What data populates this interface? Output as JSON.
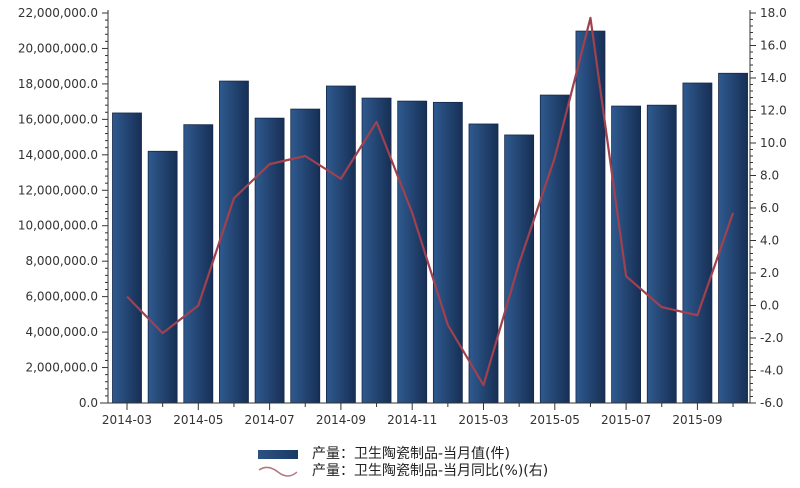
{
  "chart_data": {
    "type": "bar+line",
    "categories": [
      "2014-03",
      "2014-04",
      "2014-05",
      "2014-06",
      "2014-07",
      "2014-08",
      "2014-09",
      "2014-10",
      "2014-11",
      "2014-12",
      "2015-03",
      "2015-04",
      "2015-05",
      "2015-06",
      "2015-07",
      "2015-08",
      "2015-09",
      "2015-10"
    ],
    "x_tick_labels": [
      "2014-03",
      "2014-05",
      "2014-07",
      "2014-09",
      "2014-11",
      "2015-03",
      "2015-05",
      "2015-07",
      "2015-09"
    ],
    "series": [
      {
        "name": "产量：卫生陶瓷制品-当月值(件)",
        "type": "bar",
        "axis": "left",
        "color": "#23477a",
        "values": [
          16360000,
          14200000,
          15700000,
          18160000,
          16070000,
          16580000,
          17880000,
          17200000,
          17030000,
          16960000,
          15740000,
          15120000,
          17370000,
          20980000,
          16750000,
          16800000,
          18050000,
          18600000
        ]
      },
      {
        "name": "产量：卫生陶瓷制品-当月同比(%)(右)",
        "type": "line",
        "axis": "right",
        "color": "#a0414f",
        "values": [
          0.55,
          -1.7,
          0.0,
          6.6,
          8.7,
          9.2,
          7.8,
          11.3,
          5.7,
          -1.2,
          -4.9,
          2.6,
          9.1,
          17.7,
          1.8,
          -0.1,
          -0.6,
          5.7
        ]
      }
    ],
    "y_left": {
      "range": [
        0,
        22000000
      ],
      "ticks": [
        "0.0",
        "2,000,000.0",
        "4,000,000.0",
        "6,000,000.0",
        "8,000,000.0",
        "10,000,000.0",
        "12,000,000.0",
        "14,000,000.0",
        "16,000,000.0",
        "18,000,000.0",
        "20,000,000.0",
        "22,000,000.0"
      ]
    },
    "y_right": {
      "range": [
        -6,
        18
      ],
      "ticks": [
        "-6.0",
        "-4.0",
        "-2.0",
        "0.0",
        "2.0",
        "4.0",
        "6.0",
        "8.0",
        "10.0",
        "12.0",
        "14.0",
        "16.0",
        "18.0"
      ]
    },
    "grid": false,
    "legend_placement": "bottom"
  }
}
